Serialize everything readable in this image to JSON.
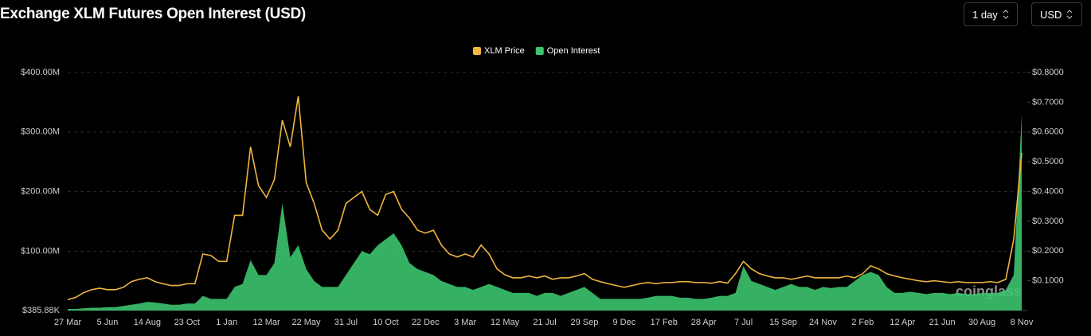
{
  "header": {
    "title": "Exchange XLM Futures Open Interest (USD)",
    "interval": "1 day",
    "currency": "USD"
  },
  "chart_data": {
    "type": "line",
    "categories": [
      "27 Mar",
      null,
      null,
      null,
      null,
      "5 Jun",
      null,
      null,
      null,
      null,
      "14 Aug",
      null,
      null,
      null,
      null,
      "23 Oct",
      null,
      null,
      null,
      null,
      "1 Jan",
      null,
      null,
      null,
      null,
      "12 Mar",
      null,
      null,
      null,
      null,
      "22 May",
      null,
      null,
      null,
      null,
      "31 Jul",
      null,
      null,
      null,
      null,
      "10 Oct",
      null,
      null,
      null,
      null,
      "22 Dec",
      null,
      null,
      null,
      null,
      "3 Mar",
      null,
      null,
      null,
      null,
      "12 May",
      null,
      null,
      null,
      null,
      "21 Jul",
      null,
      null,
      null,
      null,
      "29 Sep",
      null,
      null,
      null,
      null,
      "9 Dec",
      null,
      null,
      null,
      null,
      "17 Feb",
      null,
      null,
      null,
      null,
      "28 Apr",
      null,
      null,
      null,
      null,
      "7 Jul",
      null,
      null,
      null,
      null,
      "15 Sep",
      null,
      null,
      null,
      null,
      "24 Nov",
      null,
      null,
      null,
      null,
      "2 Feb",
      null,
      null,
      null,
      null,
      "12 Apr",
      null,
      null,
      null,
      null,
      "21 Jun",
      null,
      null,
      null,
      null,
      "30 Aug",
      null,
      null,
      null,
      null,
      "8 Nov"
    ],
    "series": [
      {
        "name": "XLM Price",
        "color": "#f0b63f",
        "kind": "line",
        "axis": "y2",
        "values": [
          0.036,
          0.044,
          0.06,
          0.07,
          0.075,
          0.07,
          0.07,
          0.078,
          0.097,
          0.105,
          0.11,
          0.097,
          0.09,
          0.084,
          0.084,
          0.09,
          0.09,
          0.19,
          0.185,
          0.165,
          0.165,
          0.32,
          0.32,
          0.55,
          0.42,
          0.38,
          0.44,
          0.64,
          0.55,
          0.72,
          0.43,
          0.36,
          0.27,
          0.24,
          0.27,
          0.36,
          0.38,
          0.4,
          0.34,
          0.32,
          0.39,
          0.4,
          0.34,
          0.31,
          0.27,
          0.26,
          0.27,
          0.22,
          0.19,
          0.18,
          0.19,
          0.18,
          0.22,
          0.19,
          0.14,
          0.12,
          0.11,
          0.11,
          0.116,
          0.11,
          0.116,
          0.105,
          0.11,
          0.11,
          0.116,
          0.124,
          0.105,
          0.097,
          0.09,
          0.084,
          0.078,
          0.084,
          0.09,
          0.094,
          0.09,
          0.094,
          0.094,
          0.097,
          0.097,
          0.094,
          0.094,
          0.092,
          0.097,
          0.092,
          0.124,
          0.165,
          0.14,
          0.124,
          0.116,
          0.11,
          0.11,
          0.105,
          0.11,
          0.116,
          0.11,
          0.11,
          0.11,
          0.11,
          0.116,
          0.11,
          0.124,
          0.15,
          0.14,
          0.124,
          0.116,
          0.11,
          0.105,
          0.1,
          0.097,
          0.1,
          0.097,
          0.094,
          0.097,
          0.094,
          0.094,
          0.094,
          0.097,
          0.094,
          0.105,
          0.24,
          0.53
        ]
      },
      {
        "name": "Open Interest",
        "color": "#3cc46e",
        "kind": "area",
        "axis": "y",
        "values": [
          3000000.0,
          3000000.0,
          4000000.0,
          5000000.0,
          5000000.0,
          6000000.0,
          6000000.0,
          8000000.0,
          10000000.0,
          12000000.0,
          15000000.0,
          14000000.0,
          12000000.0,
          10000000.0,
          10000000.0,
          12000000.0,
          12000000.0,
          25000000.0,
          20000000.0,
          20000000.0,
          20000000.0,
          40000000.0,
          45000000.0,
          85000000.0,
          60000000.0,
          60000000.0,
          80000000.0,
          180000000.0,
          90000000.0,
          110000000.0,
          70000000.0,
          50000000.0,
          40000000.0,
          40000000.0,
          40000000.0,
          60000000.0,
          80000000.0,
          100000000.0,
          95000000.0,
          110000000.0,
          120000000.0,
          130000000.0,
          110000000.0,
          80000000.0,
          70000000.0,
          65000000.0,
          60000000.0,
          50000000.0,
          45000000.0,
          40000000.0,
          40000000.0,
          35000000.0,
          40000000.0,
          45000000.0,
          40000000.0,
          35000000.0,
          30000000.0,
          30000000.0,
          30000000.0,
          25000000.0,
          30000000.0,
          30000000.0,
          25000000.0,
          30000000.0,
          35000000.0,
          40000000.0,
          30000000.0,
          20000000.0,
          20000000.0,
          20000000.0,
          20000000.0,
          20000000.0,
          20000000.0,
          22000000.0,
          25000000.0,
          25000000.0,
          25000000.0,
          22000000.0,
          22000000.0,
          20000000.0,
          20000000.0,
          22000000.0,
          25000000.0,
          25000000.0,
          30000000.0,
          75000000.0,
          50000000.0,
          45000000.0,
          40000000.0,
          35000000.0,
          40000000.0,
          45000000.0,
          40000000.0,
          40000000.0,
          35000000.0,
          40000000.0,
          38000000.0,
          40000000.0,
          40000000.0,
          50000000.0,
          60000000.0,
          65000000.0,
          60000000.0,
          40000000.0,
          30000000.0,
          30000000.0,
          32000000.0,
          30000000.0,
          28000000.0,
          30000000.0,
          30000000.0,
          28000000.0,
          30000000.0,
          28000000.0,
          28000000.0,
          30000000.0,
          30000000.0,
          30000000.0,
          35000000.0,
          60000000.0,
          330000000.0
        ]
      }
    ],
    "ylim": [
      385880,
      400000000
    ],
    "yticks": [
      {
        "value": 385880,
        "label": "$385.88K"
      },
      {
        "value": 100000000,
        "label": "$100.00M"
      },
      {
        "value": 200000000,
        "label": "$200.00M"
      },
      {
        "value": 300000000,
        "label": "$300.00M"
      },
      {
        "value": 400000000,
        "label": "$400.00M"
      }
    ],
    "y2lim": [
      0,
      0.8
    ],
    "y2ticks": [
      {
        "value": 0.1,
        "label": "$0.1000"
      },
      {
        "value": 0.2,
        "label": "$0.2000"
      },
      {
        "value": 0.3,
        "label": "$0.3000"
      },
      {
        "value": 0.4,
        "label": "$0.4000"
      },
      {
        "value": 0.5,
        "label": "$0.5000"
      },
      {
        "value": 0.6,
        "label": "$0.6000"
      },
      {
        "value": 0.7,
        "label": "$0.7000"
      },
      {
        "value": 0.8,
        "label": "$0.8000"
      }
    ],
    "grid": true,
    "legend": "top",
    "watermark": "coinglass"
  }
}
